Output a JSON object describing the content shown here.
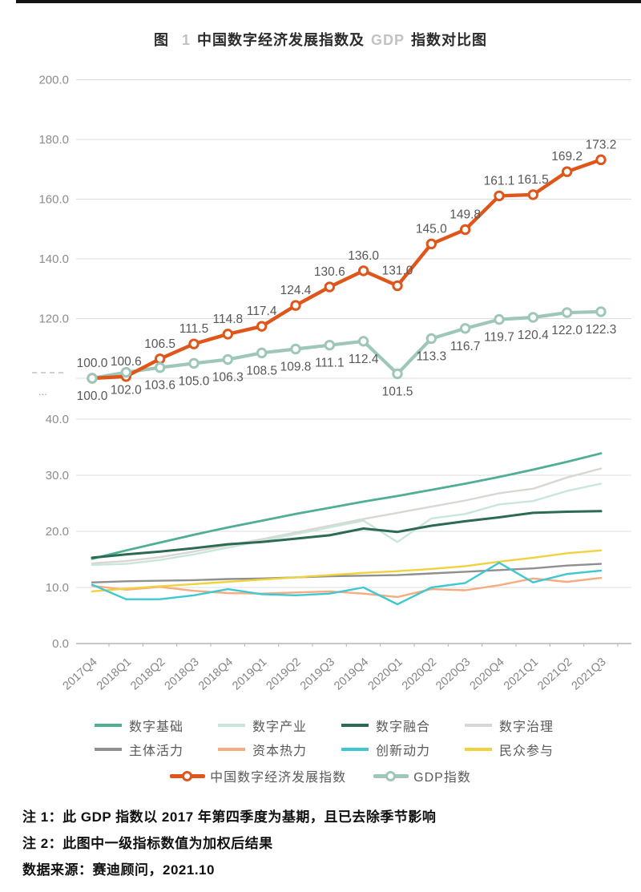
{
  "title": {
    "prefix": "图",
    "fig_number": "1",
    "middle": "中国数字经济发展指数及",
    "gdp_word": "GDP",
    "suffix": "指数对比图"
  },
  "chart_data": {
    "type": "line",
    "categories": [
      "2017Q4",
      "2018Q1",
      "2018Q2",
      "2018Q3",
      "2018Q4",
      "2019Q1",
      "2019Q2",
      "2019Q3",
      "2019Q4",
      "2020Q1",
      "2020Q2",
      "2020Q3",
      "2020Q4",
      "2021Q1",
      "2021Q2",
      "2021Q3"
    ],
    "axis_break": {
      "dots": "..."
    },
    "top_panel": {
      "ylim": [
        100,
        200
      ],
      "yticks": [
        200,
        180,
        160,
        140,
        120
      ],
      "baseline": 100,
      "grid": true,
      "series": [
        {
          "name": "中国数字经济发展指数",
          "color": "#E0551A",
          "marker": "ring",
          "labels": "above",
          "values": [
            100.0,
            100.6,
            106.5,
            111.5,
            114.8,
            117.4,
            124.4,
            130.6,
            136.0,
            131.0,
            145.0,
            149.8,
            161.1,
            161.5,
            169.2,
            173.2
          ]
        },
        {
          "name": "GDP指数",
          "color": "#9EC6B9",
          "marker": "ring",
          "labels": "below",
          "values": [
            100.0,
            102.0,
            103.6,
            105.0,
            106.3,
            108.5,
            109.8,
            111.1,
            112.4,
            101.5,
            113.3,
            116.7,
            119.7,
            120.4,
            122.0,
            122.3
          ]
        }
      ]
    },
    "bottom_panel": {
      "ylim": [
        0,
        40
      ],
      "yticks": [
        40,
        30,
        20,
        10,
        0
      ],
      "grid": true,
      "series": [
        {
          "name": "数字基础",
          "color": "#4FAE93",
          "values": [
            15.1,
            16.6,
            18.0,
            19.4,
            20.7,
            21.9,
            23.1,
            24.2,
            25.3,
            26.3,
            27.4,
            28.5,
            29.7,
            31.0,
            32.4,
            33.9
          ]
        },
        {
          "name": "数字产业",
          "color": "#C9E6DA",
          "values": [
            14.0,
            14.2,
            14.9,
            15.9,
            17.1,
            18.3,
            19.5,
            20.7,
            21.9,
            18.1,
            22.3,
            23.1,
            24.8,
            25.4,
            27.2,
            28.5
          ]
        },
        {
          "name": "数字融合",
          "color": "#2D6A52",
          "values": [
            15.3,
            15.9,
            16.4,
            17.0,
            17.7,
            18.1,
            18.7,
            19.3,
            20.5,
            19.9,
            21.0,
            21.8,
            22.5,
            23.3,
            23.5,
            23.6
          ]
        },
        {
          "name": "数字治理",
          "color": "#D9D7D3",
          "values": [
            14.3,
            14.7,
            15.4,
            16.4,
            17.5,
            18.6,
            19.8,
            21.0,
            22.2,
            23.3,
            24.4,
            25.5,
            26.8,
            27.6,
            29.6,
            31.2
          ]
        },
        {
          "name": "主体活力",
          "color": "#8F8F8F",
          "values": [
            10.9,
            11.1,
            11.2,
            11.3,
            11.5,
            11.6,
            11.8,
            12.0,
            12.1,
            12.2,
            12.5,
            12.8,
            13.1,
            13.4,
            13.9,
            14.2
          ]
        },
        {
          "name": "资本热力",
          "color": "#F6AB80",
          "values": [
            10.3,
            9.6,
            10.1,
            9.4,
            9.0,
            8.9,
            9.1,
            9.3,
            8.9,
            8.3,
            9.7,
            9.5,
            10.4,
            11.6,
            11.0,
            11.7
          ]
        },
        {
          "name": "创新动力",
          "color": "#3FC8D2",
          "values": [
            10.5,
            7.9,
            7.9,
            8.6,
            9.7,
            8.8,
            8.6,
            8.9,
            10.0,
            7.0,
            10.0,
            10.8,
            14.4,
            10.9,
            12.4,
            13.0
          ]
        },
        {
          "name": "民众参与",
          "color": "#F0D23E",
          "values": [
            9.3,
            9.8,
            10.2,
            10.6,
            11.0,
            11.4,
            11.8,
            12.2,
            12.6,
            12.9,
            13.3,
            13.8,
            14.6,
            15.3,
            16.1,
            16.6
          ]
        }
      ]
    }
  },
  "legend": {
    "rows": [
      {
        "items": [
          {
            "label": "数字基础",
            "color": "#4FAE93"
          },
          {
            "label": "数字产业",
            "color": "#C9E6DA"
          },
          {
            "label": "数字融合",
            "color": "#2D6A52"
          },
          {
            "label": "数字治理",
            "color": "#D9D7D3"
          }
        ]
      },
      {
        "items": [
          {
            "label": "主体活力",
            "color": "#8F8F8F"
          },
          {
            "label": "资本热力",
            "color": "#F6AB80"
          },
          {
            "label": "创新动力",
            "color": "#3FC8D2"
          },
          {
            "label": "民众参与",
            "color": "#F0D23E"
          }
        ]
      },
      {
        "items": [
          {
            "label": "中国数字经济发展指数",
            "color": "#E0551A"
          },
          {
            "label": "GDP指数",
            "color": "#9EC6B9"
          }
        ]
      }
    ]
  },
  "notes": {
    "note1": "注 1：此 GDP 指数以 2017 年第四季度为基期，且已去除季节影响",
    "note2": "注 2：此图中一级指标数值为加权后结果",
    "source": "数据来源：赛迪顾问，2021.10"
  }
}
